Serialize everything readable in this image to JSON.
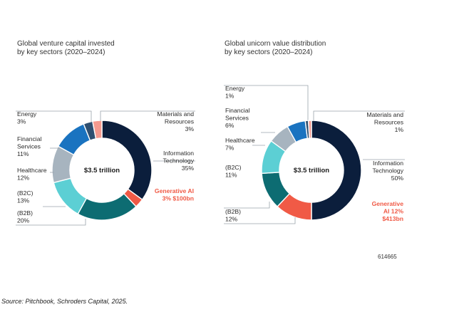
{
  "page": {
    "source": "Source: Pitchbook, Schroders Capital, 2025.",
    "code": "614665"
  },
  "chart_data": [
    {
      "type": "pie",
      "variant": "donut",
      "title": "Global venture capital invested\nby key sectors (2020–2024)",
      "center_label": "$3.5 trillion",
      "slices": [
        {
          "label": "Information\nTechnology\n35%",
          "value": 35,
          "color": "#0b1e3c"
        },
        {
          "label": "Generative AI\n3% $100bn",
          "value": 3,
          "color": "#f05a46",
          "highlight": true
        },
        {
          "label": "(B2B)\n20%",
          "value": 20,
          "color": "#0d6c72"
        },
        {
          "label": "(B2C)\n13%",
          "value": 13,
          "color": "#5ccfd4"
        },
        {
          "label": "Healthcare\n12%",
          "value": 12,
          "color": "#a7b4bf"
        },
        {
          "label": "Financial\nServices\n11%",
          "value": 11,
          "color": "#1a73c0"
        },
        {
          "label": "Energy\n3%",
          "value": 3,
          "color": "#2f4f70"
        },
        {
          "label": "Materials and\nResources\n3%",
          "value": 3,
          "color": "#f59a8f"
        }
      ]
    },
    {
      "type": "pie",
      "variant": "donut",
      "title": "Global unicorn value distribution\nby key sectors (2020–2024)",
      "center_label": "$3.5 trillion",
      "slices": [
        {
          "label": "Information\nTechnology\n50%",
          "value": 50,
          "color": "#0b1e3c"
        },
        {
          "label": "Generative\nAI 12%\n$413bn",
          "value": 12,
          "color": "#f05a46",
          "highlight": true
        },
        {
          "label": "(B2B)\n12%",
          "value": 12,
          "color": "#0d6c72"
        },
        {
          "label": "(B2C)\n11%",
          "value": 11,
          "color": "#5ccfd4"
        },
        {
          "label": "Healthcare\n7%",
          "value": 7,
          "color": "#a7b4bf"
        },
        {
          "label": "Financial\nServices\n6%",
          "value": 6,
          "color": "#1a73c0"
        },
        {
          "label": "Energy\n1%",
          "value": 1,
          "color": "#2f4f70"
        },
        {
          "label": "Materials and\nResources\n1%",
          "value": 1,
          "color": "#f59a8f"
        }
      ]
    }
  ]
}
